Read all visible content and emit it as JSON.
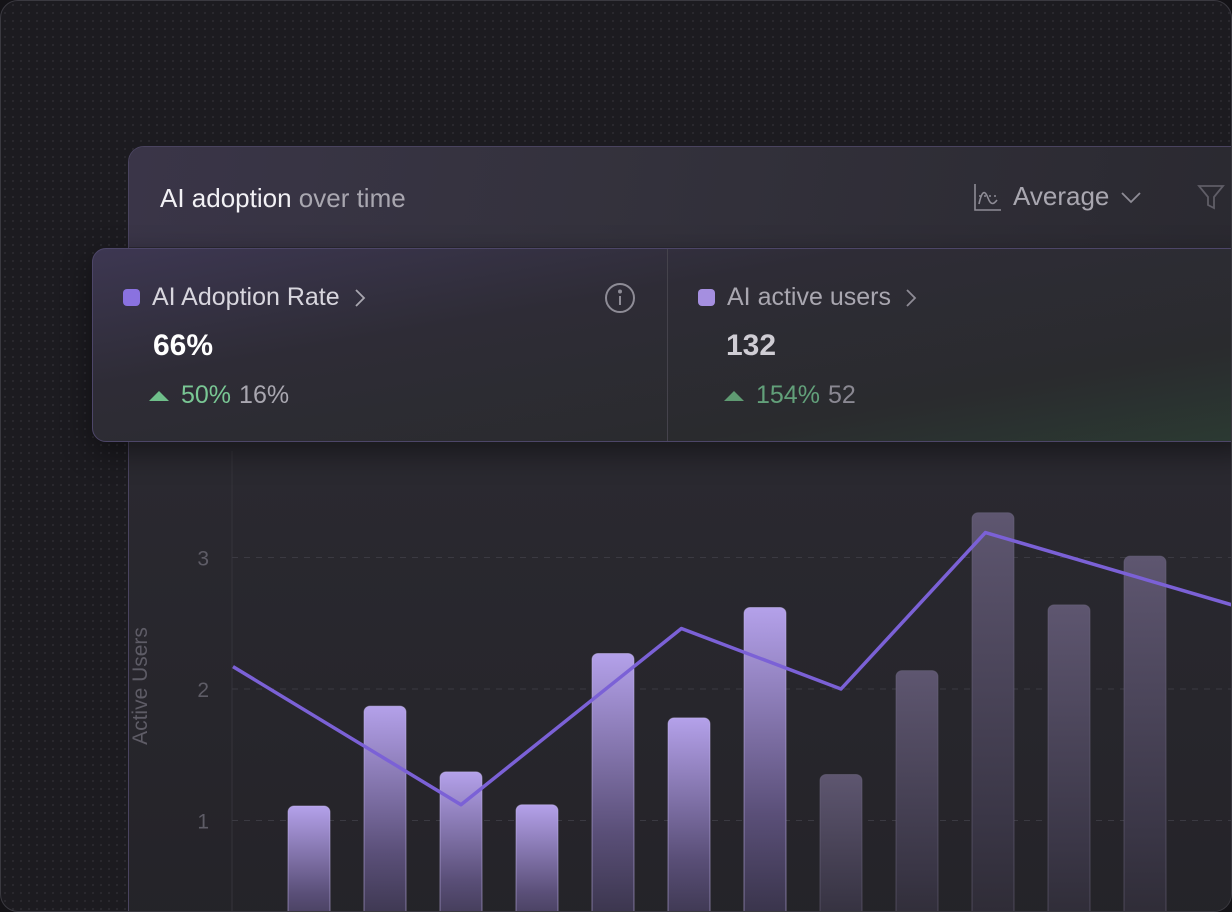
{
  "header": {
    "title_strong": "AI adoption",
    "title_muted": " over time",
    "aggregation_label": "Average",
    "aggregation_icon": "chart-curve-icon",
    "filter_icon": "filter-icon"
  },
  "metrics": [
    {
      "label": "AI Adoption Rate",
      "value": "66%",
      "delta_percent": "50%",
      "previous": "16%",
      "color": "#8a72e0",
      "selected": true
    },
    {
      "label": "AI active users",
      "value": "132",
      "delta_percent": "154%",
      "previous": "52",
      "color": "#a58fe0",
      "selected": false
    }
  ],
  "colors": {
    "accent": "#7b61d6",
    "positive": "#6fbf8a",
    "bar": "#a895e0",
    "bar_muted": "#6a6278"
  },
  "chart_data": {
    "type": "bar+line",
    "ylabel": "Active Users",
    "yticks": [
      "1",
      "2",
      "3"
    ],
    "ylim": [
      0,
      3.6
    ],
    "grid": true,
    "bars": [
      1.11,
      1.87,
      1.37,
      1.12,
      2.27,
      1.78,
      2.62,
      1.35,
      2.14,
      3.34,
      2.64,
      3.01
    ],
    "line": [
      {
        "x": -1,
        "y": 2.17
      },
      {
        "x": 2,
        "y": 1.12
      },
      {
        "x": 4.9,
        "y": 2.46
      },
      {
        "x": 7,
        "y": 2.0
      },
      {
        "x": 8.9,
        "y": 3.19
      },
      {
        "x": 12.2,
        "y": 2.63
      }
    ]
  }
}
